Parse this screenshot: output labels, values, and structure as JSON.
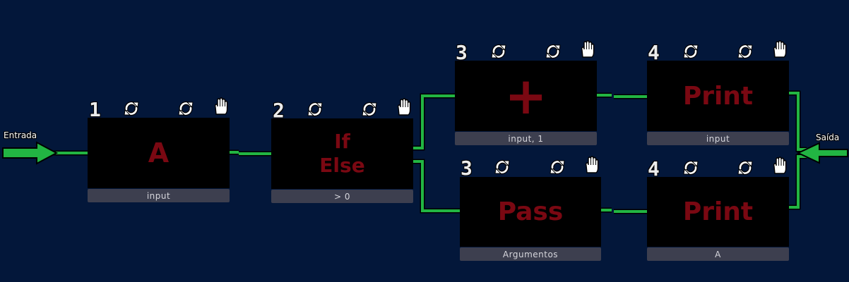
{
  "labels": {
    "input": "Entrada",
    "output": "Saída"
  },
  "colors": {
    "background": "#03173a",
    "wire": "#22b543",
    "block": "#000000",
    "block_text": "#7a0812",
    "caption_bg": "#3d3f4f"
  },
  "nodes": [
    {
      "id": "a",
      "order": "1",
      "title": "A",
      "caption": "input",
      "icons": [
        "refresh-icon",
        "refresh-icon",
        "hand-icon"
      ]
    },
    {
      "id": "ifelse",
      "order": "2",
      "title": "If\nElse",
      "caption": "> 0",
      "icons": [
        "refresh-icon",
        "refresh-icon",
        "hand-icon"
      ]
    },
    {
      "id": "plus",
      "order": "3",
      "title": "+",
      "caption": "input, 1",
      "icons": [
        "refresh-icon",
        "refresh-icon",
        "hand-icon"
      ]
    },
    {
      "id": "pass",
      "order": "3",
      "title": "Pass",
      "caption": "Argumentos",
      "icons": [
        "refresh-icon",
        "refresh-icon",
        "hand-icon"
      ]
    },
    {
      "id": "print1",
      "order": "4",
      "title": "Print",
      "caption": "input",
      "icons": [
        "refresh-icon",
        "refresh-icon",
        "hand-icon"
      ]
    },
    {
      "id": "print2",
      "order": "4",
      "title": "Print",
      "caption": "A",
      "icons": [
        "refresh-icon",
        "refresh-icon",
        "hand-icon"
      ]
    }
  ]
}
